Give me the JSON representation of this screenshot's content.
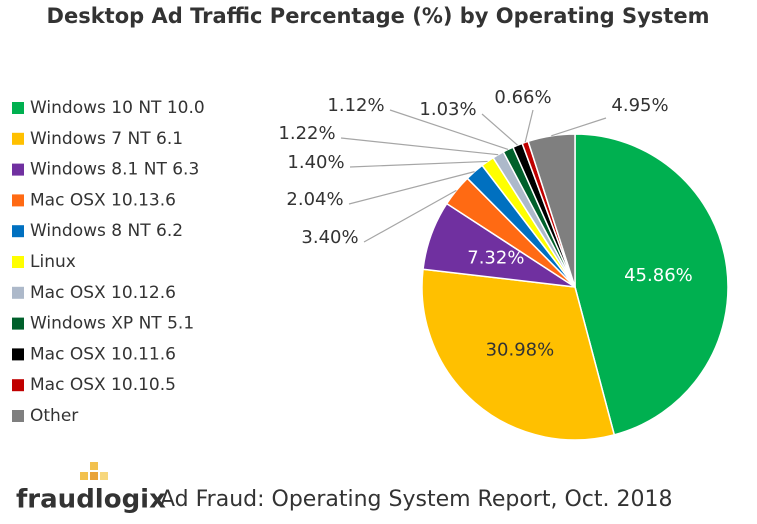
{
  "chart_data": {
    "type": "pie",
    "title": "Desktop Ad Traffic Percentage (%) by Operating System",
    "categories": [
      "Windows 10 NT 10.0",
      "Windows 7 NT 6.1",
      "Windows 8.1 NT 6.3",
      "Mac OSX 10.13.6",
      "Windows 8 NT 6.2",
      "Linux",
      "Mac OSX 10.12.6",
      "Windows XP NT 5.1",
      "Mac OSX 10.11.6",
      "Mac OSX 10.10.5",
      "Other"
    ],
    "values": [
      45.86,
      30.98,
      7.32,
      3.4,
      2.04,
      1.4,
      1.22,
      1.12,
      1.03,
      0.66,
      4.95
    ],
    "value_labels": [
      "45.86%",
      "30.98%",
      "7.32%",
      "3.40%",
      "2.04%",
      "1.40%",
      "1.22%",
      "1.12%",
      "1.03%",
      "0.66%",
      "4.95%"
    ],
    "colors": [
      "#00b050",
      "#ffc000",
      "#7030a0",
      "#ff6a13",
      "#0070c0",
      "#ffff00",
      "#adb9ca",
      "#00602b",
      "#000000",
      "#c00000",
      "#7f7f7f"
    ],
    "legend": "left",
    "logo": "fraudlogix",
    "footer": "Ad Fraud: Operating System Report, Oct. 2018"
  }
}
